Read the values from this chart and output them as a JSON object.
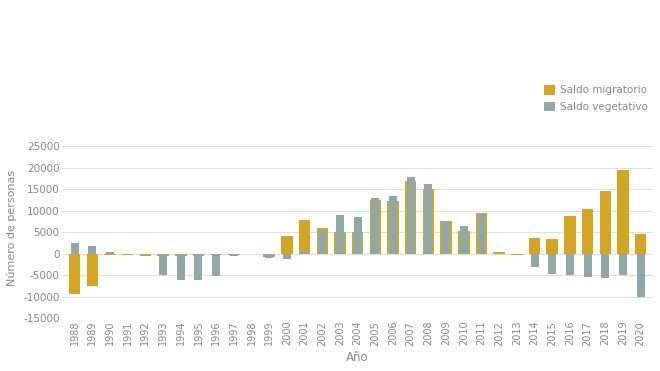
{
  "years": [
    1988,
    1989,
    1990,
    1991,
    1992,
    1993,
    1994,
    1995,
    1996,
    1997,
    1998,
    1999,
    2000,
    2001,
    2002,
    2003,
    2004,
    2005,
    2006,
    2007,
    2008,
    2009,
    2010,
    2011,
    2012,
    2013,
    2014,
    2015,
    2016,
    2017,
    2018,
    2019,
    2020
  ],
  "saldo_migratorio": [
    -9500,
    -7500,
    -300,
    -300,
    -500,
    -500,
    -500,
    -500,
    -300,
    -300,
    -200,
    -700,
    4000,
    7800,
    6000,
    5000,
    5000,
    12500,
    12200,
    17000,
    15000,
    7700,
    5200,
    9500,
    300,
    -300,
    3700,
    3500,
    8700,
    10500,
    14500,
    19500,
    4500
  ],
  "saldo_vegetativo": [
    2500,
    1700,
    300,
    -200,
    -400,
    -5000,
    -6200,
    -6200,
    -5300,
    -500,
    -200,
    -1000,
    -1200,
    600,
    5500,
    9000,
    8500,
    13000,
    13500,
    17900,
    16200,
    7500,
    6500,
    9500,
    0,
    0,
    -3200,
    -4800,
    -5000,
    -5500,
    -5800,
    -5000,
    -10000
  ],
  "bar_color_migratorio": "#D4A520",
  "bar_color_vegetativo": "#8FA8A8",
  "ylabel": "Número de personas",
  "xlabel": "Año",
  "legend_migratorio": "Saldo migratorio",
  "legend_vegetativo": "Saldo vegetativo",
  "ylim": [
    -15000,
    27000
  ],
  "yticks": [
    -15000,
    -10000,
    -5000,
    0,
    5000,
    10000,
    15000,
    20000,
    25000
  ],
  "background_color": "#ffffff",
  "grid_color": "#d8d8d8"
}
